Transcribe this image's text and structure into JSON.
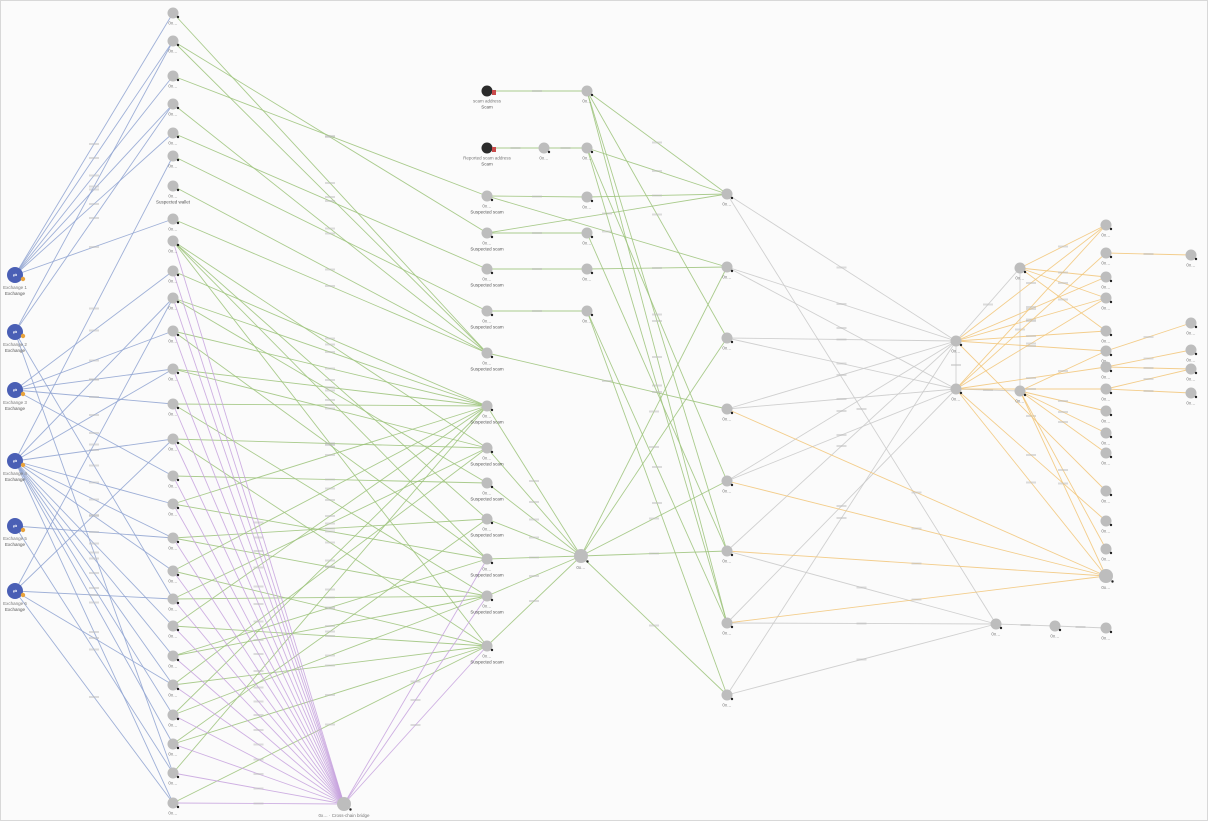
{
  "colors": {
    "exchange_edge": "#8fa3d1",
    "flow_edge": "#9cc37a",
    "hub_edge": "#c7a3de",
    "neutral_edge": "#c9c9c9",
    "downstream_edge": "#f2c679",
    "exchange_node": "#4a5fb5",
    "scam_node": "#2b2b2b",
    "address_node": "#bdbdbd",
    "badge": "#e8a33d"
  },
  "nodes": [
    {
      "id": "e1",
      "label": "Exchange 1",
      "sub": "Exchange",
      "kind": "exchange"
    },
    {
      "id": "e2",
      "label": "Exchange 2",
      "sub": "Exchange",
      "kind": "exchange"
    },
    {
      "id": "e3",
      "label": "Exchange 3",
      "sub": "Exchange",
      "kind": "exchange"
    },
    {
      "id": "e4",
      "label": "Exchange 4",
      "sub": "Exchange",
      "kind": "exchange"
    },
    {
      "id": "e5",
      "label": "Exchange 5",
      "sub": "Exchange",
      "kind": "exchange"
    },
    {
      "id": "e6",
      "label": "Exchange 6",
      "sub": "Exchange",
      "kind": "exchange"
    },
    {
      "id": "s1",
      "label": "scam address",
      "sub": "Scam",
      "kind": "scam"
    },
    {
      "id": "s2",
      "label": "Reported scam address",
      "sub": "Scam",
      "kind": "scam"
    },
    {
      "id": "b1",
      "label": "0x…",
      "kind": "address"
    },
    {
      "id": "b2",
      "label": "0x…",
      "kind": "address"
    },
    {
      "id": "b3",
      "label": "0x…",
      "kind": "address"
    },
    {
      "id": "b4",
      "label": "0x…",
      "kind": "address"
    },
    {
      "id": "b5",
      "label": "0x…",
      "kind": "address"
    },
    {
      "id": "b6",
      "label": "0x…",
      "kind": "address"
    },
    {
      "id": "b7",
      "label": "0x…",
      "sub": "Suspected wallet",
      "kind": "address"
    },
    {
      "id": "b8",
      "label": "0x…",
      "kind": "address"
    },
    {
      "id": "b9",
      "label": "0x…",
      "kind": "address"
    },
    {
      "id": "b10",
      "label": "0x…",
      "kind": "address"
    },
    {
      "id": "b11",
      "label": "0x…",
      "kind": "address"
    },
    {
      "id": "b12",
      "label": "0x…",
      "kind": "address"
    },
    {
      "id": "b13",
      "label": "0x…",
      "kind": "address"
    },
    {
      "id": "b14",
      "label": "0x…",
      "kind": "address"
    },
    {
      "id": "b15",
      "label": "0x…",
      "kind": "address"
    },
    {
      "id": "b16",
      "label": "0x…",
      "kind": "address"
    },
    {
      "id": "b17",
      "label": "0x…",
      "kind": "address"
    },
    {
      "id": "b18",
      "label": "0x…",
      "kind": "address"
    },
    {
      "id": "b19",
      "label": "0x…",
      "kind": "address"
    },
    {
      "id": "b20",
      "label": "0x…",
      "kind": "address"
    },
    {
      "id": "b21",
      "label": "0x…",
      "kind": "address"
    },
    {
      "id": "b22",
      "label": "0x…",
      "kind": "address"
    },
    {
      "id": "b23",
      "label": "0x…",
      "kind": "address"
    },
    {
      "id": "b24",
      "label": "0x…",
      "kind": "address"
    },
    {
      "id": "b25",
      "label": "0x…",
      "kind": "address"
    },
    {
      "id": "b26",
      "label": "0x…",
      "kind": "address"
    },
    {
      "id": "b27",
      "label": "0x…",
      "kind": "address"
    },
    {
      "id": "c1",
      "label": "0x…",
      "sub": "Suspected scam",
      "kind": "address"
    },
    {
      "id": "c2",
      "label": "0x…",
      "sub": "Suspected scam",
      "kind": "address"
    },
    {
      "id": "c3",
      "label": "0x…",
      "sub": "Suspected scam",
      "kind": "address"
    },
    {
      "id": "c4",
      "label": "0x…",
      "sub": "Suspected scam",
      "kind": "address"
    },
    {
      "id": "c5",
      "label": "0x…",
      "sub": "Suspected scam",
      "kind": "address"
    },
    {
      "id": "c6",
      "label": "0x…",
      "sub": "Suspected scam",
      "kind": "address"
    },
    {
      "id": "c7",
      "label": "0x…",
      "sub": "Suspected scam",
      "kind": "address"
    },
    {
      "id": "c8",
      "label": "0x…",
      "sub": "Suspected scam",
      "kind": "address"
    },
    {
      "id": "c9",
      "label": "0x…",
      "sub": "Suspected scam",
      "kind": "address"
    },
    {
      "id": "c10",
      "label": "0x…",
      "sub": "Suspected scam",
      "kind": "address"
    },
    {
      "id": "c11",
      "label": "0x…",
      "sub": "Suspected scam",
      "kind": "address"
    },
    {
      "id": "c12",
      "label": "0x…",
      "sub": "Suspected scam",
      "kind": "address"
    },
    {
      "id": "d0",
      "label": "0x…",
      "kind": "address"
    },
    {
      "id": "d1",
      "label": "0x…",
      "kind": "address"
    },
    {
      "id": "d2",
      "label": "0x…",
      "kind": "address"
    },
    {
      "id": "d3",
      "label": "0x…",
      "kind": "address"
    },
    {
      "id": "d4",
      "label": "0x…",
      "kind": "address"
    },
    {
      "id": "d5",
      "label": "0x…",
      "kind": "address"
    },
    {
      "id": "d6",
      "label": "0x…",
      "kind": "address"
    },
    {
      "id": "h1",
      "label": "0x…",
      "kind": "address"
    },
    {
      "id": "h2",
      "label": "0x… · Cross-chain bridge",
      "kind": "address"
    },
    {
      "id": "m1",
      "label": "0x…",
      "kind": "address"
    },
    {
      "id": "m2",
      "label": "0x…",
      "kind": "address"
    },
    {
      "id": "m3",
      "label": "0x…",
      "kind": "address"
    },
    {
      "id": "m4",
      "label": "0x…",
      "kind": "address"
    },
    {
      "id": "m5",
      "label": "0x…",
      "kind": "address"
    },
    {
      "id": "m6",
      "label": "0x…",
      "kind": "address"
    },
    {
      "id": "m7",
      "label": "0x…",
      "kind": "address"
    },
    {
      "id": "m8",
      "label": "0x…",
      "kind": "address"
    },
    {
      "id": "r1",
      "label": "0x…",
      "kind": "address"
    },
    {
      "id": "r2",
      "label": "0x…",
      "kind": "address"
    },
    {
      "id": "r3",
      "label": "0x…",
      "kind": "address"
    },
    {
      "id": "r4",
      "label": "0x…",
      "kind": "address"
    },
    {
      "id": "L1",
      "label": "0x…",
      "kind": "address"
    },
    {
      "id": "L2",
      "label": "0x…",
      "kind": "address"
    },
    {
      "id": "L3",
      "label": "0x…",
      "kind": "address"
    },
    {
      "id": "L4",
      "label": "0x…",
      "kind": "address"
    },
    {
      "id": "L5",
      "label": "0x…",
      "kind": "address"
    },
    {
      "id": "L6",
      "label": "0x…",
      "kind": "address"
    },
    {
      "id": "L7",
      "label": "0x…",
      "kind": "address"
    },
    {
      "id": "L8",
      "label": "0x…",
      "kind": "address"
    },
    {
      "id": "L9",
      "label": "0x…",
      "kind": "address"
    },
    {
      "id": "L10",
      "label": "0x…",
      "kind": "address"
    },
    {
      "id": "L11",
      "label": "0x…",
      "kind": "address"
    },
    {
      "id": "L12",
      "label": "0x…",
      "kind": "address"
    },
    {
      "id": "L13",
      "label": "0x…",
      "kind": "address"
    },
    {
      "id": "L14",
      "label": "0x…",
      "kind": "address"
    },
    {
      "id": "L15",
      "label": "0x…",
      "kind": "address"
    },
    {
      "id": "F1",
      "label": "0x…",
      "kind": "address"
    },
    {
      "id": "F2",
      "label": "0x…",
      "kind": "address"
    },
    {
      "id": "F3",
      "label": "0x…",
      "kind": "address"
    },
    {
      "id": "F4",
      "label": "0x…",
      "kind": "address"
    },
    {
      "id": "F5",
      "label": "0x…",
      "kind": "address"
    },
    {
      "id": "g1",
      "label": "0x…",
      "kind": "address"
    },
    {
      "id": "g2",
      "label": "0x…",
      "kind": "address"
    },
    {
      "id": "g3",
      "label": "0x…",
      "kind": "address"
    }
  ],
  "edges": {
    "exchange": [
      "e1-b1",
      "e1-b2",
      "e1-b3",
      "e1-b4",
      "e1-b5",
      "e1-b8",
      "e2-b2",
      "e2-b4",
      "e2-b20",
      "e2-b26",
      "e3-b12",
      "e3-b13",
      "e3-b14",
      "e3-b16",
      "e3-b10",
      "e4-b11",
      "e4-b13",
      "e4-b15",
      "e4-b17",
      "e4-b18",
      "e4-b19",
      "e4-b21",
      "e4-b22",
      "e4-b23",
      "e4-b24",
      "e4-b25",
      "e4-b27",
      "e4-b6",
      "e5-b18",
      "e5-b26",
      "e6-b20",
      "e6-b11",
      "e6-b15",
      "e6-b27",
      "e6-b23"
    ],
    "flow": [
      "b1-c5",
      "b2-c5",
      "b2-c2",
      "b3-c1",
      "b4-c5",
      "b5-c3",
      "b6-c4",
      "b7-c5",
      "b8-c5",
      "b9-c7",
      "b9-c9",
      "b9-c10",
      "b9-c12",
      "b10-c6",
      "b11-c6",
      "b11-c8",
      "b12-c6",
      "b12-c10",
      "b13-c6",
      "b13-c7",
      "b14-c6",
      "b14-c11",
      "b15-c7",
      "b15-c12",
      "b16-c8",
      "b17-c6",
      "b17-c10",
      "b18-c9",
      "b18-c11",
      "b19-c6",
      "b19-c12",
      "b20-c7",
      "b20-c11",
      "b21-c6",
      "b21-c12",
      "b22-c10",
      "b22-c11",
      "b23-c7",
      "b23-c12",
      "b24-c6",
      "b24-c11",
      "b25-c12",
      "b25-c9",
      "b26-c6",
      "b27-c12",
      "c6-h1",
      "c7-h1",
      "c8-h1",
      "c9-h1",
      "c10-h1",
      "c11-h1",
      "c12-h1",
      "c1-d3",
      "c2-d4",
      "c3-d5",
      "c4-d6",
      "c5-m4",
      "c1-m2",
      "c2-m1",
      "s1-d1",
      "s2-d0",
      "d0-d2",
      "d1-m1",
      "d1-m3",
      "d1-m6",
      "d1-m7",
      "d2-m1",
      "d2-m5",
      "d2-m7",
      "d3-m1",
      "d4-m6",
      "d5-m2",
      "d6-m8",
      "d6-m7",
      "h1-m3",
      "h1-m5",
      "h1-m6",
      "h1-m8",
      "h1-m2"
    ],
    "hub": [
      "b9-h2",
      "b10-h2",
      "b11-h2",
      "b12-h2",
      "b13-h2",
      "b14-h2",
      "b15-h2",
      "b16-h2",
      "b17-h2",
      "b18-h2",
      "b19-h2",
      "b20-h2",
      "b21-h2",
      "b22-h2",
      "b23-h2",
      "b24-h2",
      "b25-h2",
      "b26-h2",
      "b27-h2",
      "c10-h2",
      "c11-h2",
      "c12-h2"
    ],
    "neutral": [
      "m1-r1",
      "m2-r1",
      "m3-r1",
      "m3-r2",
      "m4-r1",
      "m4-r2",
      "m5-r2",
      "m6-r1",
      "m7-r2",
      "m8-r1",
      "m7-g1",
      "m8-g1",
      "m6-g1",
      "m1-g1",
      "r1-r2",
      "r1-r3",
      "r3-r4",
      "r2-r4",
      "g1-g2",
      "g2-g3",
      "m2-r2",
      "m5-r1"
    ],
    "downstream": [
      "m4-L15",
      "m5-L15",
      "m6-L15",
      "m7-L15",
      "r1-L1",
      "r1-L3",
      "r1-L4",
      "r1-L5",
      "r1-L6",
      "r1-L12",
      "r2-L1",
      "r2-L2",
      "r2-L4",
      "r2-L7",
      "r2-L8",
      "r2-L13",
      "r2-L15",
      "r3-L1",
      "r3-L3",
      "r3-L4",
      "r3-L5",
      "r4-L6",
      "r4-L9",
      "r4-L10",
      "r4-L11",
      "r4-L14",
      "r4-L15",
      "L2-F1",
      "L6-F2",
      "L7-F3",
      "L7-F4",
      "L8-F4",
      "L8-F5"
    ]
  }
}
